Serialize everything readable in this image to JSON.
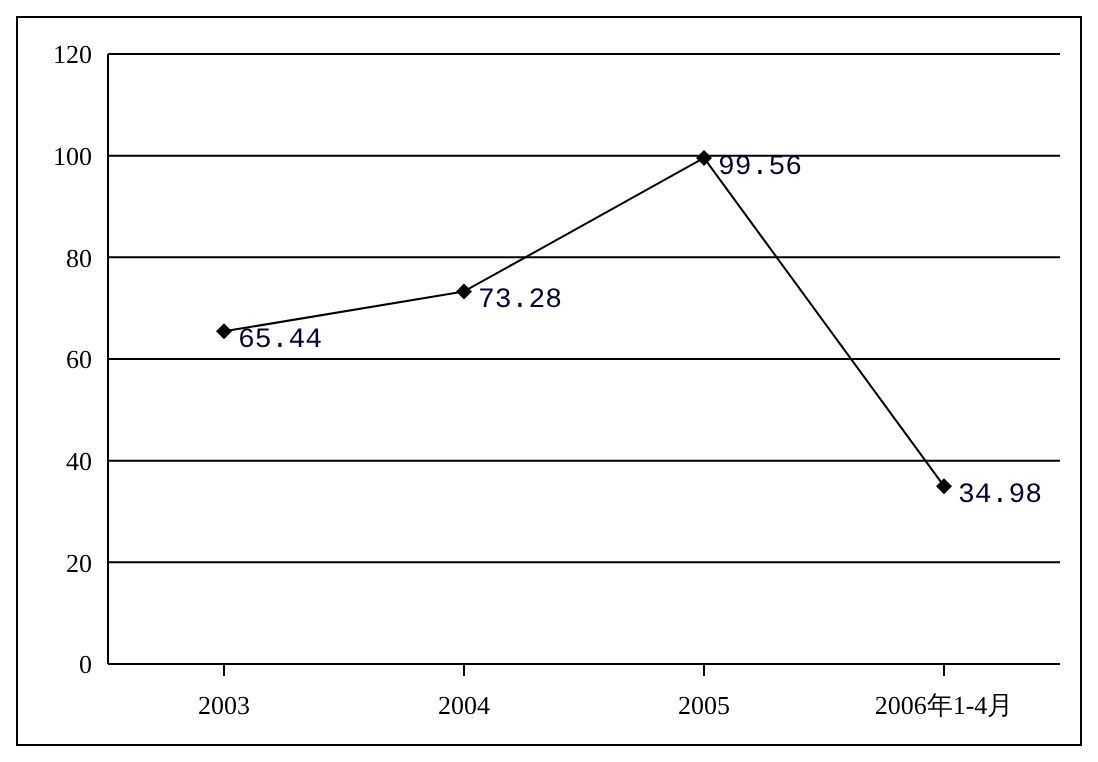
{
  "chart_data": {
    "type": "line",
    "categories": [
      "2003",
      "2004",
      "2005",
      "2006年1-4月"
    ],
    "series": [
      {
        "color": "#000000",
        "values": [
          65.44,
          73.28,
          99.56,
          34.98
        ]
      }
    ],
    "ylim": [
      0,
      120
    ],
    "yticks": [
      0,
      20,
      40,
      60,
      80,
      100,
      120
    ],
    "grid": "y",
    "marker": "diamond",
    "line_style": "solid",
    "data_labels": true
  }
}
